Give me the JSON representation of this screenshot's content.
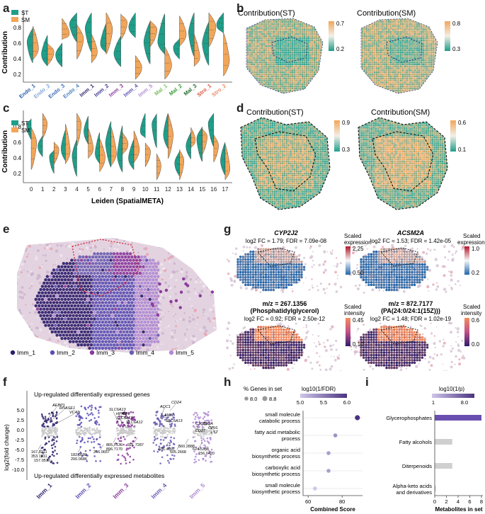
{
  "colors": {
    "st": "#1f9e89",
    "sm": "#f2a65a",
    "teal_light": "#8fd1c4",
    "orange_light": "#f7c48f",
    "imm1": "#2e1e6b",
    "imm2": "#5a4fb3",
    "imm3": "#8a3a9c",
    "imm4": "#6a5db0",
    "imm5": "#b08ad3",
    "blue": "#3b6fb6",
    "red": "#c9453c",
    "purple": "#4a3480"
  },
  "panel_labels": {
    "a": "a",
    "b": "b",
    "c": "c",
    "d": "d",
    "e": "e",
    "f": "f",
    "g": "g",
    "h": "h",
    "i": "i"
  },
  "panel_a": {
    "ylabel": "Contribution",
    "legend": [
      "ST",
      "SM"
    ],
    "yticks": [
      "0.8",
      "0.6",
      "0.4",
      "0.2"
    ],
    "categories": [
      "Endo_1",
      "Endo_2",
      "Endo_3",
      "Endo_4",
      "Imm_1",
      "Imm_2",
      "Imm_3",
      "Imm_4",
      "Imm_5",
      "Mal_1",
      "Mal_2",
      "Mal_3",
      "Stro_1",
      "Stro_2"
    ],
    "category_colors": [
      "#2a5caa",
      "#7fa3d6",
      "#3a6bb5",
      "#4b7fbf",
      "#2e1e6b",
      "#3b3396",
      "#8a3a9c",
      "#5a4fb3",
      "#b08ad3",
      "#7cbf5e",
      "#3a9a3a",
      "#1f6b2a",
      "#e0503c",
      "#e88c6a"
    ]
  },
  "panel_b": {
    "titles": [
      "Contribution(ST)",
      "Contribution(SM)"
    ],
    "st_scale": [
      "0.7",
      "0.2"
    ],
    "sm_scale": [
      "0.8",
      "0.3"
    ]
  },
  "panel_c": {
    "ylabel": "Contribution",
    "legend": [
      "ST",
      "SM"
    ],
    "yticks": [
      "0.8",
      "0.6",
      "0.4",
      "0.2"
    ],
    "xlabel": "Leiden (SpatialMETA)",
    "categories": [
      "0",
      "1",
      "2",
      "3",
      "4",
      "5",
      "6",
      "7",
      "8",
      "9",
      "10",
      "11",
      "12",
      "13",
      "14",
      "15",
      "16",
      "17"
    ]
  },
  "panel_d": {
    "titles": [
      "Contribution(ST)",
      "Contribution(SM)"
    ],
    "st_scale": [
      "0.9",
      "0.3"
    ],
    "sm_scale": [
      "0.6",
      "0.1"
    ]
  },
  "panel_e": {
    "legend": [
      "Imm_1",
      "Imm_2",
      "Imm_3",
      "Imm_4",
      "Imm_5"
    ]
  },
  "panel_f": {
    "top_caption": "Up-regulated differentially expressed genes",
    "bottom_caption": "Up-regulated differentially expressed metabolites",
    "ylabel": "log2(fold change)",
    "yticks": [
      "5.0",
      "2.5",
      "0.0",
      "-2.5",
      "-5.0",
      "-7.5",
      "-10.0"
    ],
    "groups": [
      "Imm_1",
      "Imm_2",
      "Imm_3",
      "Imm_4",
      "Imm_5"
    ],
    "gene_labels": [
      "AEBP1",
      "RNASE1",
      "VCAN",
      "SLC6A13",
      "HPN2",
      "SLC5A12",
      "AGT",
      "SLC6A12",
      "AQC1",
      "AMN",
      "SLC5A13",
      "CD24",
      "C1QB",
      "C1QA",
      "CD27",
      "CPVL",
      "LYZ"
    ],
    "metab_labels": [
      "167.0211",
      "353.1611",
      "157.0510",
      "182.0580",
      "200.0686",
      "266.0657",
      "865.7136",
      "896.7170",
      "921.7287",
      "631.4097",
      "505.2668",
      "560.2888",
      "624.5358",
      "156.0420"
    ]
  },
  "panel_g": {
    "genes": [
      {
        "title": "CYP2J2",
        "stats": "log2 FC = 1.79; FDR = 7.09e-08",
        "scale_title": "Scaled expression",
        "scale": [
          "2.25",
          "0.50"
        ]
      },
      {
        "title": "ACSM2A",
        "stats": "log2 FC = 1.53; FDR = 1.42e-05",
        "scale_title": "Scaled expression",
        "scale": [
          "1.0",
          "0.2"
        ]
      }
    ],
    "metabolites": [
      {
        "title1": "m/z = 267.1356",
        "title2": "(Phosphatidylglycerol)",
        "stats": "log2 FC = 0.92; FDR = 2.50e-12",
        "scale_title": "Scaled intensity",
        "scale": [
          "0.45",
          "0.10"
        ]
      },
      {
        "title1": "m/z = 872.7177",
        "title2": "(PA(24:0/24:1(15Z)))",
        "stats": "log2 FC = 1.48; FDR = 1.02e-19",
        "scale_title": "Scaled intensity",
        "scale": [
          "0.6",
          "0.0"
        ]
      }
    ]
  },
  "panel_h": {
    "size_legend_title": "% Genes in set",
    "size_legend": [
      "8.0",
      "8.8"
    ],
    "color_legend_title": "log10(1/FDR)",
    "color_ticks": [
      "5.0",
      "5.5",
      "6.0"
    ],
    "terms": [
      "small molecule catabolic process",
      "fatty acid metabolic process",
      "organic acid biosynthetic process",
      "carboxylic acid biosynthetic process",
      "small molecule biosynthetic process"
    ],
    "term_lines": [
      [
        "small molecule",
        "catabolic process"
      ],
      [
        "fatty acid metabolic",
        "process"
      ],
      [
        "organic acid",
        "biosynthetic process"
      ],
      [
        "carboxylic acid",
        "biosynthetic process"
      ],
      [
        "small molecule",
        "biosynthetic process"
      ]
    ],
    "xticks": [
      "60",
      "80"
    ],
    "xlabel": "Combined Score"
  },
  "panel_i": {
    "legend_title": "log10(1/p)",
    "legend_ticks": [
      "1",
      "8.0"
    ],
    "xticks": [
      "0",
      "2",
      "4",
      "6",
      "8"
    ],
    "xlabel": "Metabolites in set",
    "categories_display": [
      "Glycerophosphates",
      "Fatty alcohols",
      "Diterpenoids",
      "Alpha-keto acids",
      "and derivatives"
    ]
  },
  "chart_data": [
    {
      "panel": "h",
      "type": "scatter",
      "xlabel": "Combined Score",
      "xlim": [
        57,
        92
      ],
      "categories": [
        "small molecule catabolic process",
        "fatty acid metabolic process",
        "organic acid biosynthetic process",
        "carboxylic acid biosynthetic process",
        "small molecule biosynthetic process"
      ],
      "values": [
        89,
        76,
        72,
        72,
        64
      ],
      "color_values": [
        6.1,
        5.4,
        5.3,
        5.3,
        5.0
      ],
      "size_values": [
        8.8,
        8.0,
        8.0,
        8.0,
        8.0
      ]
    },
    {
      "panel": "i",
      "type": "bar",
      "xlabel": "Metabolites in set",
      "xlim": [
        0,
        8
      ],
      "categories": [
        "Glycerophosphates",
        "Fatty alcohols",
        "Diterpenoids",
        "Alpha-keto acids and derivatives"
      ],
      "values": [
        8,
        3,
        3,
        0.2
      ],
      "color_values": [
        8.0,
        1.0,
        1.0,
        1.0
      ]
    }
  ]
}
